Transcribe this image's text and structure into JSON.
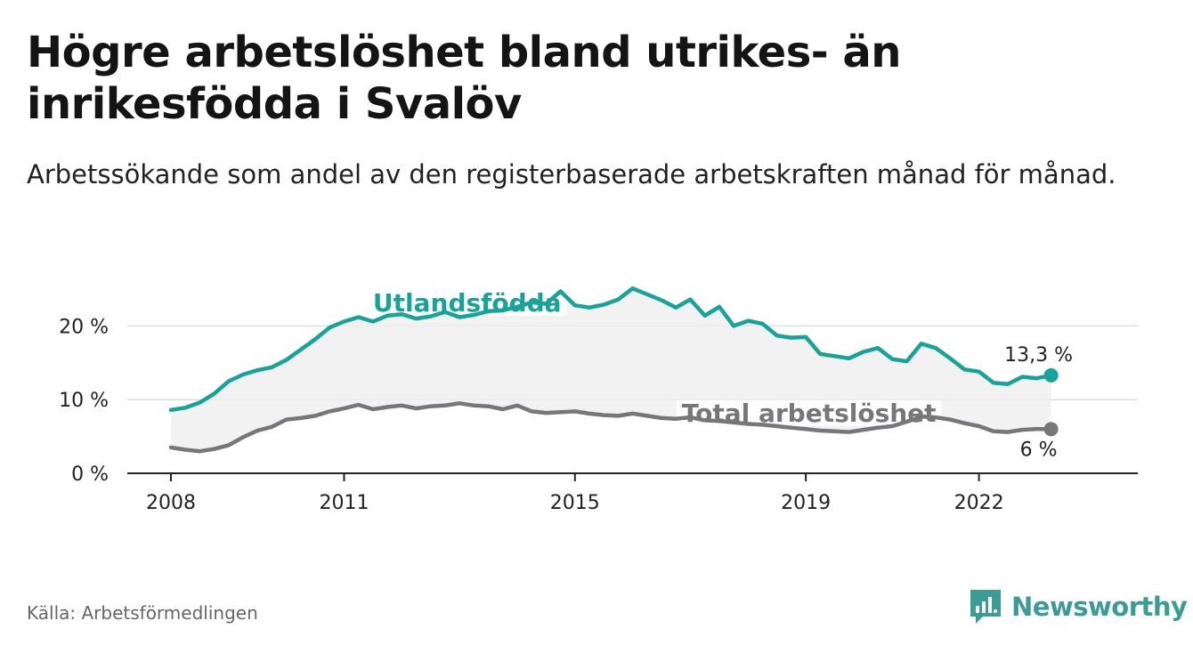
{
  "title": "Högre arbetslöshet bland utrikes- än inrikesfödda i Svalöv",
  "subtitle": "Arbetssökande som andel av den registerbaserade arbetskraften månad för månad.",
  "source": "Källa: Arbetsförmedlingen",
  "brand": "Newsworthy",
  "colors": {
    "foreign": "#17a398",
    "total": "#76767b",
    "band": "#efefef",
    "grid": "#dddddd",
    "axis": "#222222"
  },
  "chart_data": {
    "type": "line",
    "title": "Högre arbetslöshet bland utrikes- än inrikesfödda i Svalöv",
    "xlabel": "",
    "ylabel": "",
    "xlim": [
      2008,
      2023.95
    ],
    "ylim": [
      0,
      25
    ],
    "x_ticks": [
      2008,
      2011,
      2015,
      2019,
      2022
    ],
    "x_tick_labels": [
      "2008",
      "2011",
      "2015",
      "2019",
      "2022"
    ],
    "y_ticks": [
      0,
      10,
      20
    ],
    "y_tick_labels": [
      "0 %",
      "10 %",
      "20 %"
    ],
    "series": [
      {
        "name": "Utlandsfödda",
        "label": "Utlandsfödda",
        "end_label": "13,3 %",
        "points": [
          [
            2008.0,
            8.6
          ],
          [
            2008.25,
            8.9
          ],
          [
            2008.5,
            9.6
          ],
          [
            2008.75,
            10.8
          ],
          [
            2009.0,
            12.5
          ],
          [
            2009.25,
            13.4
          ],
          [
            2009.5,
            14.0
          ],
          [
            2009.75,
            14.4
          ],
          [
            2010.0,
            15.4
          ],
          [
            2010.25,
            16.8
          ],
          [
            2010.5,
            18.2
          ],
          [
            2010.75,
            19.8
          ],
          [
            2011.0,
            20.6
          ],
          [
            2011.25,
            21.2
          ],
          [
            2011.5,
            20.6
          ],
          [
            2011.75,
            21.4
          ],
          [
            2012.0,
            21.6
          ],
          [
            2012.25,
            21.0
          ],
          [
            2012.5,
            21.3
          ],
          [
            2012.75,
            21.9
          ],
          [
            2013.0,
            21.2
          ],
          [
            2013.25,
            21.5
          ],
          [
            2013.5,
            22.0
          ],
          [
            2013.75,
            22.1
          ],
          [
            2014.0,
            22.6
          ],
          [
            2014.25,
            23.2
          ],
          [
            2014.5,
            23.0
          ],
          [
            2014.75,
            24.7
          ],
          [
            2015.0,
            22.8
          ],
          [
            2015.25,
            22.5
          ],
          [
            2015.5,
            22.9
          ],
          [
            2015.75,
            23.6
          ],
          [
            2016.0,
            25.1
          ],
          [
            2016.25,
            24.3
          ],
          [
            2016.5,
            23.5
          ],
          [
            2016.75,
            22.5
          ],
          [
            2017.0,
            23.6
          ],
          [
            2017.25,
            21.4
          ],
          [
            2017.5,
            22.6
          ],
          [
            2017.75,
            20.0
          ],
          [
            2018.0,
            20.7
          ],
          [
            2018.25,
            20.3
          ],
          [
            2018.5,
            18.7
          ],
          [
            2018.75,
            18.4
          ],
          [
            2019.0,
            18.5
          ],
          [
            2019.25,
            16.2
          ],
          [
            2019.5,
            15.9
          ],
          [
            2019.75,
            15.6
          ],
          [
            2020.0,
            16.5
          ],
          [
            2020.25,
            17.0
          ],
          [
            2020.5,
            15.5
          ],
          [
            2020.75,
            15.2
          ],
          [
            2021.0,
            17.6
          ],
          [
            2021.25,
            17.0
          ],
          [
            2021.5,
            15.6
          ],
          [
            2021.75,
            14.1
          ],
          [
            2022.0,
            13.8
          ],
          [
            2022.25,
            12.3
          ],
          [
            2022.5,
            12.1
          ],
          [
            2022.75,
            13.1
          ],
          [
            2023.0,
            12.9
          ],
          [
            2023.25,
            13.3
          ]
        ]
      },
      {
        "name": "Total arbetslöshet",
        "label": "Total arbetslöshet",
        "end_label": "6 %",
        "points": [
          [
            2008.0,
            3.5
          ],
          [
            2008.25,
            3.2
          ],
          [
            2008.5,
            3.0
          ],
          [
            2008.75,
            3.3
          ],
          [
            2009.0,
            3.8
          ],
          [
            2009.25,
            4.9
          ],
          [
            2009.5,
            5.8
          ],
          [
            2009.75,
            6.3
          ],
          [
            2010.0,
            7.3
          ],
          [
            2010.25,
            7.5
          ],
          [
            2010.5,
            7.8
          ],
          [
            2010.75,
            8.4
          ],
          [
            2011.0,
            8.8
          ],
          [
            2011.25,
            9.3
          ],
          [
            2011.5,
            8.7
          ],
          [
            2011.75,
            9.0
          ],
          [
            2012.0,
            9.2
          ],
          [
            2012.25,
            8.8
          ],
          [
            2012.5,
            9.1
          ],
          [
            2012.75,
            9.2
          ],
          [
            2013.0,
            9.5
          ],
          [
            2013.25,
            9.2
          ],
          [
            2013.5,
            9.1
          ],
          [
            2013.75,
            8.7
          ],
          [
            2014.0,
            9.2
          ],
          [
            2014.25,
            8.4
          ],
          [
            2014.5,
            8.2
          ],
          [
            2014.75,
            8.3
          ],
          [
            2015.0,
            8.4
          ],
          [
            2015.25,
            8.1
          ],
          [
            2015.5,
            7.9
          ],
          [
            2015.75,
            7.8
          ],
          [
            2016.0,
            8.1
          ],
          [
            2016.25,
            7.8
          ],
          [
            2016.5,
            7.5
          ],
          [
            2016.75,
            7.4
          ],
          [
            2017.0,
            7.6
          ],
          [
            2017.25,
            7.2
          ],
          [
            2017.5,
            7.1
          ],
          [
            2017.75,
            6.9
          ],
          [
            2018.0,
            6.7
          ],
          [
            2018.25,
            6.6
          ],
          [
            2018.5,
            6.4
          ],
          [
            2018.75,
            6.2
          ],
          [
            2019.0,
            6.0
          ],
          [
            2019.25,
            5.8
          ],
          [
            2019.5,
            5.7
          ],
          [
            2019.75,
            5.6
          ],
          [
            2020.0,
            5.9
          ],
          [
            2020.25,
            6.2
          ],
          [
            2020.5,
            6.4
          ],
          [
            2020.75,
            7.0
          ],
          [
            2021.0,
            7.7
          ],
          [
            2021.25,
            7.6
          ],
          [
            2021.5,
            7.3
          ],
          [
            2021.75,
            6.8
          ],
          [
            2022.0,
            6.4
          ],
          [
            2022.25,
            5.7
          ],
          [
            2022.5,
            5.6
          ],
          [
            2022.75,
            5.9
          ],
          [
            2023.0,
            6.0
          ],
          [
            2023.25,
            6.0
          ]
        ]
      }
    ]
  }
}
